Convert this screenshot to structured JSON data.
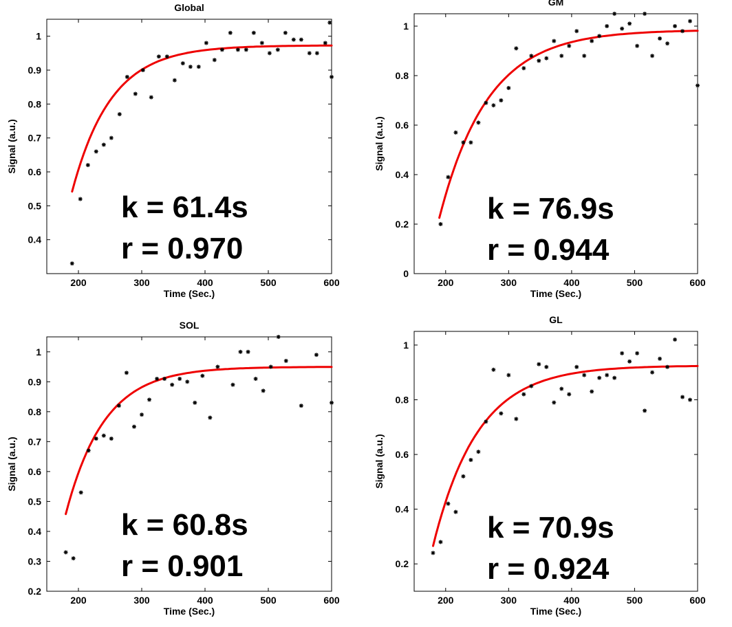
{
  "figure": {
    "fit_color": "#ee0000",
    "point_color": "#000000"
  },
  "chart_data": [
    {
      "type": "scatter",
      "title": "Global",
      "xlabel": "Time (Sec.)",
      "ylabel": "Signal (a.u.)",
      "xlim": [
        150,
        600
      ],
      "ylim": [
        0.3,
        1.05
      ],
      "xticks": [
        200,
        300,
        400,
        500,
        600
      ],
      "yticks": [
        0.4,
        0.5,
        0.6,
        0.7,
        0.8,
        0.9,
        1
      ],
      "ytick_labels": [
        "0.4",
        "0.5",
        "0.6",
        "0.7",
        "0.8",
        "0.9",
        "1"
      ],
      "fit": {
        "model": "exponential recovery",
        "k": 61.4,
        "t0": 140,
        "plateau": 0.973,
        "x_range": [
          190,
          600
        ]
      },
      "annotations": [
        "k = 61.4s",
        "r = 0.970"
      ],
      "points": [
        [
          190,
          0.33
        ],
        [
          203,
          0.52
        ],
        [
          215,
          0.62
        ],
        [
          228,
          0.66
        ],
        [
          240,
          0.68
        ],
        [
          252,
          0.7
        ],
        [
          265,
          0.77
        ],
        [
          277,
          0.88
        ],
        [
          290,
          0.83
        ],
        [
          302,
          0.9
        ],
        [
          315,
          0.82
        ],
        [
          327,
          0.94
        ],
        [
          340,
          0.94
        ],
        [
          352,
          0.87
        ],
        [
          365,
          0.92
        ],
        [
          377,
          0.91
        ],
        [
          390,
          0.91
        ],
        [
          402,
          0.98
        ],
        [
          415,
          0.93
        ],
        [
          427,
          0.96
        ],
        [
          440,
          1.01
        ],
        [
          452,
          0.96
        ],
        [
          465,
          0.96
        ],
        [
          477,
          1.01
        ],
        [
          490,
          0.98
        ],
        [
          502,
          0.95
        ],
        [
          515,
          0.96
        ],
        [
          527,
          1.01
        ],
        [
          540,
          0.99
        ],
        [
          552,
          0.99
        ],
        [
          565,
          0.95
        ],
        [
          577,
          0.95
        ],
        [
          590,
          0.98
        ],
        [
          597,
          1.04
        ],
        [
          600,
          0.88
        ]
      ]
    },
    {
      "type": "scatter",
      "title": "GM",
      "xlabel": "Time (Sec.)",
      "ylabel": "Signal (a.u.)",
      "xlim": [
        150,
        600
      ],
      "ylim": [
        0,
        1.05
      ],
      "xticks": [
        200,
        300,
        400,
        500,
        600
      ],
      "yticks": [
        0,
        0.2,
        0.4,
        0.6,
        0.8,
        1
      ],
      "ytick_labels": [
        "0",
        "0.2",
        "0.4",
        "0.6",
        "0.8",
        "1"
      ],
      "fit": {
        "model": "exponential recovery",
        "k": 76.9,
        "t0": 170,
        "plateau": 0.985,
        "x_range": [
          190,
          600
        ]
      },
      "annotations": [
        "k = 76.9s",
        "r = 0.944"
      ],
      "points": [
        [
          192,
          0.2
        ],
        [
          204,
          0.39
        ],
        [
          216,
          0.57
        ],
        [
          228,
          0.53
        ],
        [
          240,
          0.53
        ],
        [
          252,
          0.61
        ],
        [
          264,
          0.69
        ],
        [
          276,
          0.68
        ],
        [
          288,
          0.7
        ],
        [
          300,
          0.75
        ],
        [
          312,
          0.91
        ],
        [
          324,
          0.83
        ],
        [
          336,
          0.88
        ],
        [
          348,
          0.86
        ],
        [
          360,
          0.87
        ],
        [
          372,
          0.94
        ],
        [
          384,
          0.88
        ],
        [
          396,
          0.92
        ],
        [
          408,
          0.98
        ],
        [
          420,
          0.88
        ],
        [
          432,
          0.94
        ],
        [
          444,
          0.96
        ],
        [
          456,
          1.0
        ],
        [
          468,
          1.05
        ],
        [
          480,
          0.99
        ],
        [
          492,
          1.01
        ],
        [
          504,
          0.92
        ],
        [
          516,
          1.05
        ],
        [
          528,
          0.88
        ],
        [
          540,
          0.95
        ],
        [
          552,
          0.93
        ],
        [
          564,
          1.0
        ],
        [
          576,
          0.98
        ],
        [
          588,
          1.02
        ],
        [
          600,
          0.76
        ]
      ]
    },
    {
      "type": "scatter",
      "title": "SOL",
      "xlabel": "Time (Sec.)",
      "ylabel": "Signal (a.u.)",
      "xlim": [
        150,
        600
      ],
      "ylim": [
        0.2,
        1.05
      ],
      "xticks": [
        200,
        300,
        400,
        500,
        600
      ],
      "yticks": [
        0.2,
        0.3,
        0.4,
        0.5,
        0.6,
        0.7,
        0.8,
        0.9,
        1
      ],
      "ytick_labels": [
        "0.2",
        "0.3",
        "0.4",
        "0.5",
        "0.6",
        "0.7",
        "0.8",
        "0.9",
        "1"
      ],
      "fit": {
        "model": "exponential recovery",
        "k": 60.8,
        "t0": 140,
        "plateau": 0.95,
        "x_range": [
          180,
          600
        ]
      },
      "annotations": [
        "k = 60.8s",
        "r = 0.901"
      ],
      "points": [
        [
          180,
          0.33
        ],
        [
          192,
          0.31
        ],
        [
          204,
          0.53
        ],
        [
          216,
          0.67
        ],
        [
          228,
          0.71
        ],
        [
          240,
          0.72
        ],
        [
          252,
          0.71
        ],
        [
          264,
          0.82
        ],
        [
          276,
          0.93
        ],
        [
          288,
          0.75
        ],
        [
          300,
          0.79
        ],
        [
          312,
          0.84
        ],
        [
          324,
          0.91
        ],
        [
          336,
          0.91
        ],
        [
          348,
          0.89
        ],
        [
          360,
          0.91
        ],
        [
          372,
          0.9
        ],
        [
          384,
          0.83
        ],
        [
          396,
          0.92
        ],
        [
          408,
          0.78
        ],
        [
          420,
          0.95
        ],
        [
          444,
          0.89
        ],
        [
          456,
          1.0
        ],
        [
          468,
          1.0
        ],
        [
          480,
          0.91
        ],
        [
          492,
          0.87
        ],
        [
          504,
          0.95
        ],
        [
          516,
          1.05
        ],
        [
          528,
          0.97
        ],
        [
          552,
          0.82
        ],
        [
          576,
          0.99
        ],
        [
          600,
          0.83
        ]
      ]
    },
    {
      "type": "scatter",
      "title": "GL",
      "xlabel": "Time (Sec.)",
      "ylabel": "Signal (a.u.)",
      "xlim": [
        150,
        600
      ],
      "ylim": [
        0.1,
        1.05
      ],
      "xticks": [
        200,
        300,
        400,
        500,
        600
      ],
      "yticks": [
        0.2,
        0.4,
        0.6,
        0.8,
        1
      ],
      "ytick_labels": [
        "0.2",
        "0.4",
        "0.6",
        "0.8",
        "1"
      ],
      "fit": {
        "model": "exponential recovery",
        "k": 70.9,
        "t0": 156,
        "plateau": 0.925,
        "x_range": [
          180,
          600
        ]
      },
      "annotations": [
        "k = 70.9s",
        "r = 0.924"
      ],
      "points": [
        [
          180,
          0.24
        ],
        [
          192,
          0.28
        ],
        [
          204,
          0.42
        ],
        [
          216,
          0.39
        ],
        [
          228,
          0.52
        ],
        [
          240,
          0.58
        ],
        [
          252,
          0.61
        ],
        [
          264,
          0.72
        ],
        [
          276,
          0.91
        ],
        [
          288,
          0.75
        ],
        [
          300,
          0.89
        ],
        [
          312,
          0.73
        ],
        [
          324,
          0.82
        ],
        [
          336,
          0.85
        ],
        [
          348,
          0.93
        ],
        [
          360,
          0.92
        ],
        [
          372,
          0.79
        ],
        [
          384,
          0.84
        ],
        [
          396,
          0.82
        ],
        [
          408,
          0.92
        ],
        [
          420,
          0.89
        ],
        [
          432,
          0.83
        ],
        [
          444,
          0.88
        ],
        [
          456,
          0.89
        ],
        [
          468,
          0.88
        ],
        [
          480,
          0.97
        ],
        [
          492,
          0.94
        ],
        [
          504,
          0.97
        ],
        [
          516,
          0.76
        ],
        [
          528,
          0.9
        ],
        [
          540,
          0.95
        ],
        [
          552,
          0.92
        ],
        [
          564,
          1.02
        ],
        [
          576,
          0.81
        ],
        [
          588,
          0.8
        ]
      ]
    }
  ]
}
